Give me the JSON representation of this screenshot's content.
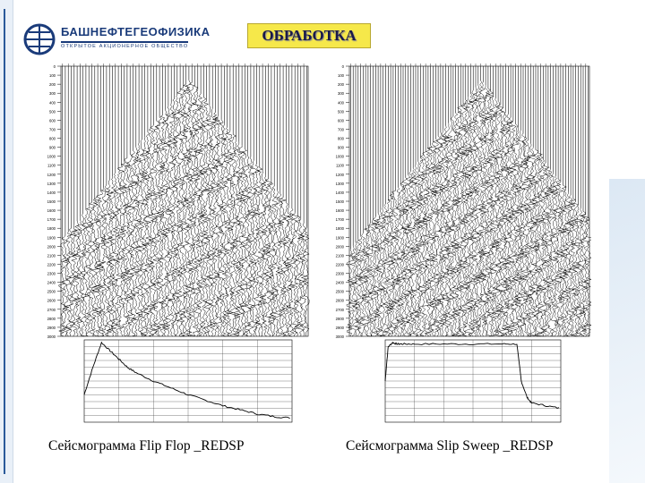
{
  "header": {
    "company_name": "БАШНЕФТЕГЕОФИЗИКА",
    "company_subtitle": "ОТКРЫТОЕ АКЦИОНЕРНОЕ ОБЩЕСТВО",
    "title": "ОБРАБОТКА"
  },
  "colors": {
    "accent": "#1a3b7a",
    "title_bg": "#f6e84a"
  },
  "left_panel": {
    "caption": "Сейсмограмма Flip Flop _REDSP",
    "time_ticks": [
      "0",
      "100",
      "200",
      "300",
      "400",
      "500",
      "600",
      "700",
      "800",
      "900",
      "1000",
      "1100",
      "1200",
      "1300",
      "1400",
      "1500",
      "1600",
      "1700",
      "1800",
      "1900",
      "2000",
      "2100",
      "2200",
      "2300",
      "2400",
      "2500",
      "2600",
      "2700",
      "2800",
      "2900",
      "3000"
    ],
    "spectrum": {
      "type": "line",
      "x": [
        0,
        5,
        10,
        15,
        20,
        25,
        30,
        40,
        50,
        60,
        70,
        80,
        90,
        100,
        110,
        120
      ],
      "y": [
        -40,
        -20,
        -2,
        -8,
        -14,
        -20,
        -24,
        -30,
        -35,
        -40,
        -44,
        -48,
        -51,
        -54,
        -56,
        -57
      ],
      "xlim": [
        0,
        120
      ],
      "ylim": [
        -60,
        0
      ]
    }
  },
  "right_panel": {
    "caption": "Сейсмограмма Slip Sweep _REDSP",
    "time_ticks": [
      "0",
      "100",
      "200",
      "300",
      "400",
      "500",
      "600",
      "700",
      "800",
      "900",
      "1000",
      "1100",
      "1200",
      "1300",
      "1400",
      "1500",
      "1600",
      "1700",
      "1800",
      "1900",
      "2000",
      "2100",
      "2200",
      "2300",
      "2400",
      "2500",
      "2600",
      "2700",
      "2800",
      "2900",
      "3000"
    ],
    "spectrum": {
      "type": "line",
      "x": [
        0,
        2,
        5,
        8,
        12,
        20,
        40,
        60,
        80,
        90,
        93,
        97,
        100,
        110,
        120
      ],
      "y": [
        -30,
        -5,
        -2,
        -3,
        -3,
        -3,
        -3,
        -3,
        -3,
        -3,
        -30,
        -42,
        -46,
        -48,
        -50
      ],
      "xlim": [
        0,
        120
      ],
      "ylim": [
        -60,
        0
      ]
    }
  }
}
